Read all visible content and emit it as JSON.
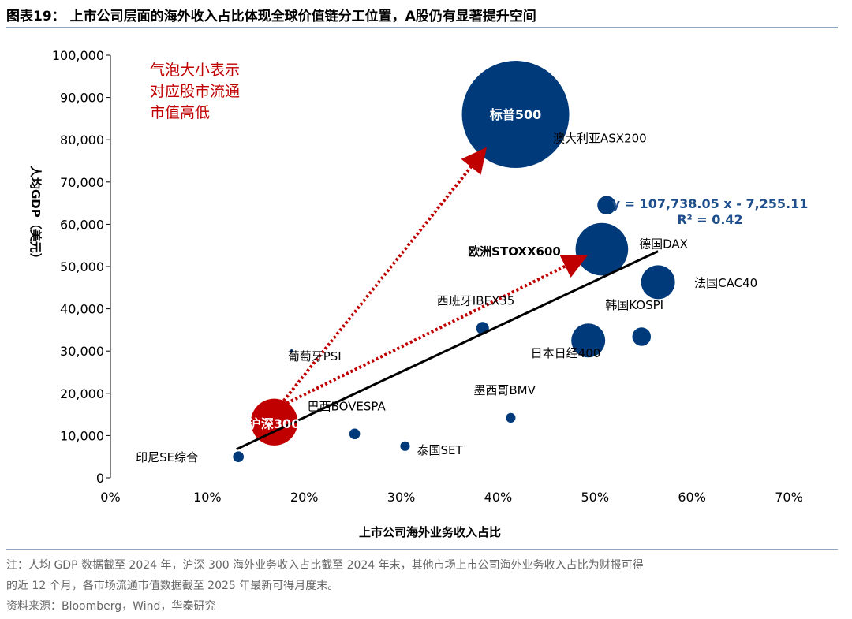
{
  "header": {
    "title": "图表19：  上市公司层面的海外收入占比体现全球价值链分工位置，A股仍有显著提升空间"
  },
  "chart_data": {
    "type": "scatter",
    "subtype": "bubble",
    "xlabel": "上市公司海外业务收入占比",
    "ylabel": "人均GDP（美元）",
    "xlim": [
      0,
      70
    ],
    "ylim": [
      0,
      100000
    ],
    "x_ticks": [
      "0%",
      "10%",
      "20%",
      "30%",
      "40%",
      "50%",
      "60%",
      "70%"
    ],
    "y_ticks": [
      "0",
      "10,000",
      "20,000",
      "30,000",
      "40,000",
      "50,000",
      "60,000",
      "70,000",
      "80,000",
      "90,000",
      "100,000"
    ],
    "grid": false,
    "annotation": [
      "气泡大小表示",
      "对应股市流通",
      "市值高低"
    ],
    "trendline": {
      "equation": "y = 107,738.05 x - 7,255.11",
      "r2": "R² = 0.42",
      "slope": 107738.05,
      "intercept": -7255.11,
      "x_range": [
        13,
        56.5
      ]
    },
    "points": [
      {
        "label": "标普500",
        "x": 41.8,
        "y": 86000,
        "size": 100,
        "color": "#003a7a",
        "label_inside": true
      },
      {
        "label": "澳大利亚ASX200",
        "x": 51.2,
        "y": 64500,
        "size": 3
      },
      {
        "label": "欧洲STOXX600",
        "x": 50.7,
        "y": 54100,
        "size": 24,
        "bold": true
      },
      {
        "label": "德国DAX",
        "x": 50.8,
        "y": 54000,
        "size": 2
      },
      {
        "label": "法国CAC40",
        "x": 56.5,
        "y": 46300,
        "size": 10
      },
      {
        "label": "韩国KOSPI",
        "x": 54.8,
        "y": 33400,
        "size": 3
      },
      {
        "label": "日本日经400",
        "x": 49.3,
        "y": 32500,
        "size": 10
      },
      {
        "label": "西班牙IBEX35",
        "x": 38.4,
        "y": 35400,
        "size": 1.4
      },
      {
        "label": "葡萄牙PSI",
        "x": 18.7,
        "y": 30000,
        "size": 0.1
      },
      {
        "label": "沪深300",
        "x": 16.9,
        "y": 13200,
        "size": 19,
        "color": "#c00000",
        "label_inside": true
      },
      {
        "label": "巴西BOVESPA",
        "x": 25.2,
        "y": 10400,
        "size": 1
      },
      {
        "label": "墨西哥BMV",
        "x": 41.3,
        "y": 14200,
        "size": 0.8
      },
      {
        "label": "泰国SET",
        "x": 30.4,
        "y": 7500,
        "size": 0.8
      },
      {
        "label": "印尼SE综合",
        "x": 13.2,
        "y": 5000,
        "size": 1
      }
    ],
    "colors": {
      "bubble": "#003a7a",
      "highlight": "#c00000",
      "trend": "#000000",
      "equation": "#1f4e8c"
    }
  },
  "footer": {
    "note1": "注：人均 GDP 数据截至 2024 年，沪深 300 海外业务收入占比截至 2024 年末，其他市场上市公司海外业务收入占比为财报可得",
    "note2": "的近 12 个月，各市场流通市值数据截至 2025 年最新可得月度末。",
    "source": "资料来源：Bloomberg，Wind，华泰研究"
  }
}
